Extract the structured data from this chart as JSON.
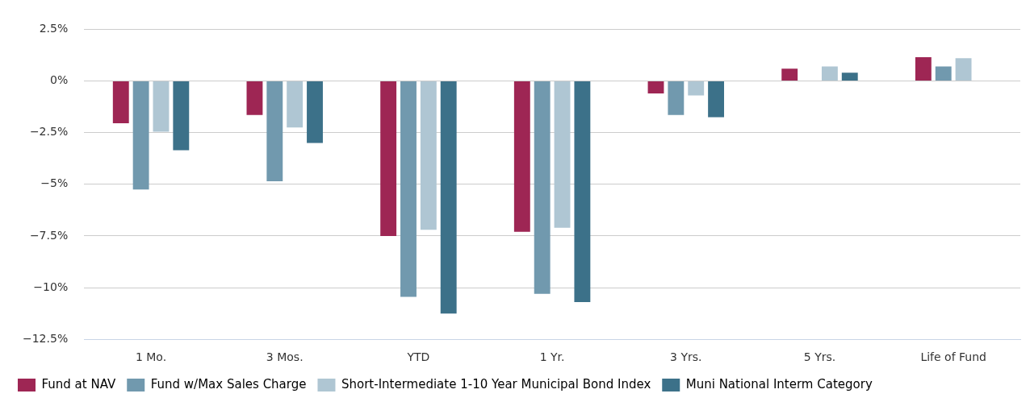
{
  "chart_data": {
    "type": "bar",
    "categories": [
      "1 Mo.",
      "3 Mos.",
      "YTD",
      "1 Yr.",
      "3 Yrs.",
      "5 Yrs.",
      "Life of Fund"
    ],
    "series": [
      {
        "name": "Fund at NAV",
        "color": "#9e2654",
        "values": [
          -2.05,
          -1.65,
          -7.5,
          -7.3,
          -0.6,
          0.6,
          1.15
        ]
      },
      {
        "name": "Fund w/Max Sales Charge",
        "color": "#7199ae",
        "values": [
          -5.25,
          -4.85,
          -10.45,
          -10.3,
          -1.65,
          null,
          0.7
        ]
      },
      {
        "name": "Short-Intermediate 1-10 Year Municipal Bond Index",
        "color": "#afc6d3",
        "values": [
          -2.45,
          -2.25,
          -7.2,
          -7.1,
          -0.7,
          0.7,
          1.1
        ]
      },
      {
        "name": "Muni National Interm Category",
        "color": "#3c7189",
        "values": [
          -3.35,
          -3.0,
          -11.25,
          -10.7,
          -1.75,
          0.4,
          null
        ]
      }
    ],
    "ylim": [
      -12.5,
      2.5
    ],
    "yticks": [
      {
        "value": -12.5,
        "label": "−12.5%"
      },
      {
        "value": -10,
        "label": "−10%"
      },
      {
        "value": -7.5,
        "label": "−7.5%"
      },
      {
        "value": -5,
        "label": "−5%"
      },
      {
        "value": -2.5,
        "label": "−2.5%"
      },
      {
        "value": 0,
        "label": "0%"
      },
      {
        "value": 2.5,
        "label": "2.5%"
      }
    ],
    "grid": "y",
    "legend": "bottom"
  }
}
